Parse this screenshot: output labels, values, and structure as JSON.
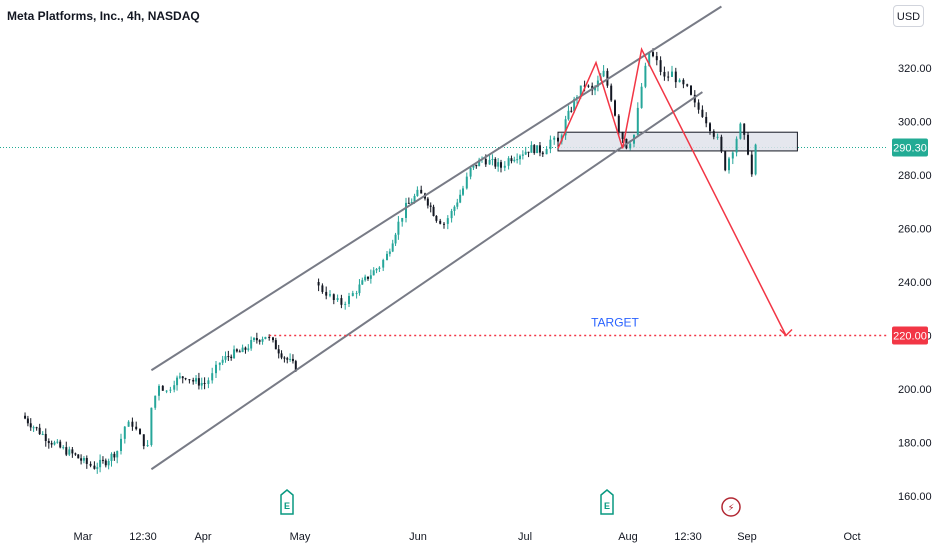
{
  "header": {
    "title": "Meta Platforms, Inc., 4h, NASDAQ",
    "currency": "USD"
  },
  "colors": {
    "up": "#26a69a",
    "down": "#131722",
    "channel": "#787b86",
    "pattern": "#f23645",
    "target": "#f23645",
    "last_price": "#22ab94",
    "target_text": "#2962ff"
  },
  "chart_data": {
    "type": "candlestick",
    "symbol": "Meta Platforms, Inc.",
    "interval": "4h",
    "exchange": "NASDAQ",
    "y_ticks": [
      160,
      180,
      200,
      220,
      240,
      260,
      280,
      300,
      320
    ],
    "y_tick_labels": [
      "160.00",
      "180.00",
      "200.00",
      "220.00",
      "240.00",
      "260.00",
      "280.00",
      "300.00",
      "320.00"
    ],
    "ylim": [
      154,
      338
    ],
    "x_labels": [
      "Mar",
      "12:30",
      "Apr",
      "May",
      "Jun",
      "Jul",
      "Aug",
      "12:30",
      "Sep",
      "Oct"
    ],
    "last_price": {
      "value": 290.3,
      "label": "290.30"
    },
    "target": {
      "value": 220.0,
      "label": "220.00",
      "text": "TARGET"
    },
    "events": [
      {
        "type": "earnings",
        "symbol": "E",
        "date": "Apr end"
      },
      {
        "type": "earnings",
        "symbol": "E",
        "date": "Jul end"
      },
      {
        "type": "dividend",
        "symbol": "⚡",
        "date": "Aug end"
      }
    ],
    "price_path": [
      [
        "Feb 14",
        190
      ],
      [
        "Feb 17",
        186
      ],
      [
        "Feb 21",
        181
      ],
      [
        "Feb 24",
        178
      ],
      [
        "Feb 28",
        175
      ],
      [
        "Mar 02",
        172
      ],
      [
        "Mar 04",
        171
      ],
      [
        "Mar 07",
        173
      ],
      [
        "Mar 10",
        177
      ],
      [
        "Mar 12",
        186
      ],
      [
        "Mar 14",
        187
      ],
      [
        "Mar 16",
        182
      ],
      [
        "Mar 18",
        178
      ],
      [
        "Mar 19",
        193
      ],
      [
        "Mar 21",
        202
      ],
      [
        "Mar 23",
        199
      ],
      [
        "Mar 25",
        203
      ],
      [
        "Mar 28",
        205
      ],
      [
        "Mar 30",
        203
      ],
      [
        "Apr 02",
        202
      ],
      [
        "Apr 04",
        205
      ],
      [
        "Apr 06",
        210
      ],
      [
        "Apr 09",
        213
      ],
      [
        "Apr 12",
        214
      ],
      [
        "Apr 15",
        218
      ],
      [
        "Apr 18",
        220
      ],
      [
        "Apr 20",
        217
      ],
      [
        "Apr 23",
        212
      ],
      [
        "Apr 26",
        208
      ],
      [
        "May 01",
        240
      ],
      [
        "May 02",
        238
      ],
      [
        "May 04",
        236
      ],
      [
        "May 06",
        233
      ],
      [
        "May 08",
        232
      ],
      [
        "May 10",
        234
      ],
      [
        "May 12",
        237
      ],
      [
        "May 15",
        242
      ],
      [
        "May 18",
        246
      ],
      [
        "May 20",
        250
      ],
      [
        "May 23",
        262
      ],
      [
        "May 25",
        268
      ],
      [
        "May 28",
        273
      ],
      [
        "May 30",
        272
      ],
      [
        "Jun 02",
        264
      ],
      [
        "Jun 04",
        262
      ],
      [
        "Jun 06",
        266
      ],
      [
        "Jun 09",
        275
      ],
      [
        "Jun 11",
        282
      ],
      [
        "Jun 14",
        286
      ],
      [
        "Jun 16",
        285
      ],
      [
        "Jun 19",
        283
      ],
      [
        "Jun 21",
        286
      ],
      [
        "Jun 24",
        288
      ],
      [
        "Jun 27",
        290
      ],
      [
        "Jun 30",
        289
      ],
      [
        "Jul 02",
        293
      ],
      [
        "Jul 04",
        292
      ],
      [
        "Jul 06",
        300
      ],
      [
        "Jul 09",
        310
      ],
      [
        "Jul 11",
        314
      ],
      [
        "Jul 13",
        311
      ],
      [
        "Jul 16",
        318
      ],
      [
        "Jul 18",
        309
      ],
      [
        "Jul 20",
        297
      ],
      [
        "Jul 22",
        291
      ],
      [
        "Jul 24",
        295
      ],
      [
        "Jul 26",
        313
      ],
      [
        "Jul 28",
        326
      ],
      [
        "Jul 30",
        322
      ],
      [
        "Aug 01",
        316
      ],
      [
        "Aug 03",
        318
      ],
      [
        "Aug 05",
        314
      ],
      [
        "Aug 07",
        312
      ],
      [
        "Aug 09",
        306
      ],
      [
        "Aug 11",
        303
      ],
      [
        "Aug 13",
        298
      ],
      [
        "Aug 15",
        293
      ],
      [
        "Aug 17",
        283
      ],
      [
        "Aug 19",
        290
      ],
      [
        "Aug 21",
        298
      ],
      [
        "Aug 23",
        289
      ],
      [
        "Aug 24",
        280
      ],
      [
        "Aug 25",
        290
      ]
    ],
    "zone": {
      "from_date": "Jul 04",
      "to_date": "Sep 05",
      "low": 289,
      "high": 296
    },
    "channel": {
      "upper": [
        [
          "Mar 19",
          207
        ],
        [
          "Aug 16",
          343
        ]
      ],
      "lower": [
        [
          "Mar 19",
          170
        ],
        [
          "Aug 11",
          311
        ]
      ]
    },
    "pattern_lines": [
      [
        "Jul 04",
        290
      ],
      [
        "Jul 14",
        322
      ],
      [
        "Jul 21",
        290
      ],
      [
        "Jul 26",
        327
      ],
      [
        "Sep 02",
        220
      ]
    ]
  }
}
